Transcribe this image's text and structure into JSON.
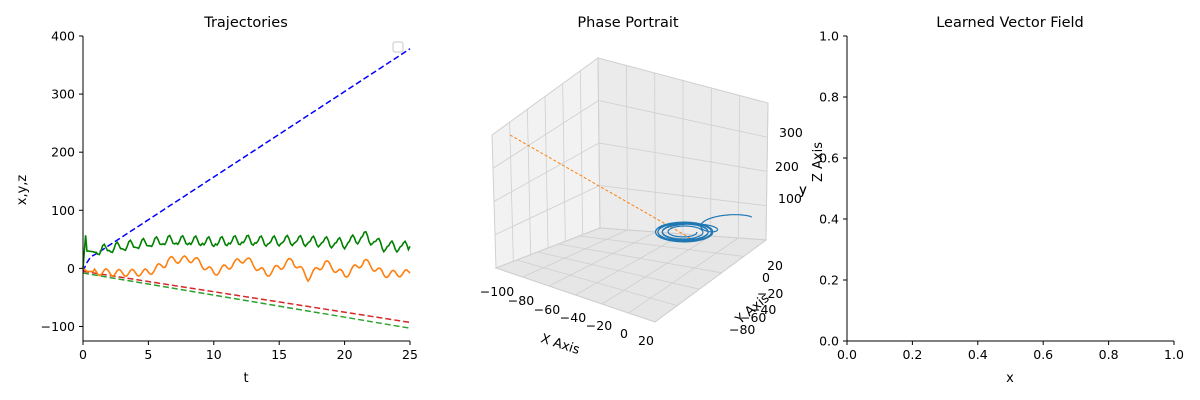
{
  "chart_data": [
    {
      "type": "line",
      "title": "Trajectories",
      "xlabel": "t",
      "ylabel": "x,y,z",
      "xlim": [
        0,
        25
      ],
      "ylim": [
        -125,
        400
      ],
      "xticks": [
        0,
        5,
        10,
        15,
        20,
        25
      ],
      "yticks": [
        -100,
        0,
        100,
        200,
        300,
        400
      ],
      "grid": false,
      "legend": "upper-right (empty)",
      "series": [
        {
          "style": "dashed",
          "color": "#0000ff",
          "x": [
            0,
            0.3,
            0.6,
            1,
            25
          ],
          "values": [
            -5,
            10,
            20,
            25,
            378
          ]
        },
        {
          "style": "dashed",
          "color": "#d62728",
          "x": [
            0,
            25
          ],
          "values": [
            -5,
            -93
          ]
        },
        {
          "style": "dashed",
          "color": "#2ca02c",
          "x": [
            0,
            25
          ],
          "values": [
            -8,
            -103
          ]
        },
        {
          "style": "solid",
          "color": "#ff7f0e",
          "signal": "x(t) oscillation",
          "x": [
            0,
            0.3,
            1,
            3,
            5,
            6.3,
            6.5,
            8.5,
            10,
            12.4,
            14,
            16,
            17.2,
            18.5,
            20,
            21.5,
            23,
            25
          ],
          "values": [
            0,
            -5,
            -6,
            -8,
            -7,
            8,
            14,
            16,
            -8,
            17,
            -10,
            14,
            -16,
            10,
            -12,
            12,
            -10,
            -8
          ]
        },
        {
          "style": "solid",
          "color": "#008000",
          "signal": "z(t) spikes",
          "x": [
            0,
            0.2,
            0.3,
            1,
            3,
            6.5,
            8.5,
            10,
            12.4,
            14,
            16,
            18.5,
            20,
            21.5,
            23,
            25
          ],
          "values": [
            0,
            57,
            30,
            28,
            35,
            45,
            44,
            42,
            46,
            44,
            46,
            44,
            42,
            55,
            38,
            38
          ]
        }
      ]
    },
    {
      "type": "scatter3d",
      "title": "Phase Portrait",
      "xlabel": "X Axis",
      "ylabel": "Y Axis",
      "zlabel": "Z Axis",
      "ylabel_inner": "y",
      "xticks": [
        "−100",
        "−80",
        "−60",
        "−40",
        "−20",
        "0",
        "20"
      ],
      "yticks": [
        "20",
        "0",
        "−20",
        "−40",
        "−60",
        "−80"
      ],
      "zticks": [
        "100",
        "200",
        "300"
      ],
      "series": [
        {
          "name": "trajectory",
          "color": "#1f77b4"
        },
        {
          "name": "linear",
          "color": "#ff7f0e",
          "style": "dashed"
        }
      ]
    },
    {
      "type": "empty",
      "title": "Learned Vector Field",
      "xlabel": "x",
      "ylabel": "y",
      "xlim": [
        0,
        1
      ],
      "ylim": [
        0,
        1
      ],
      "xticks": [
        "0.0",
        "0.2",
        "0.4",
        "0.6",
        "0.8",
        "1.0"
      ],
      "yticks": [
        "0.0",
        "0.2",
        "0.4",
        "0.6",
        "0.8",
        "1.0"
      ]
    }
  ]
}
